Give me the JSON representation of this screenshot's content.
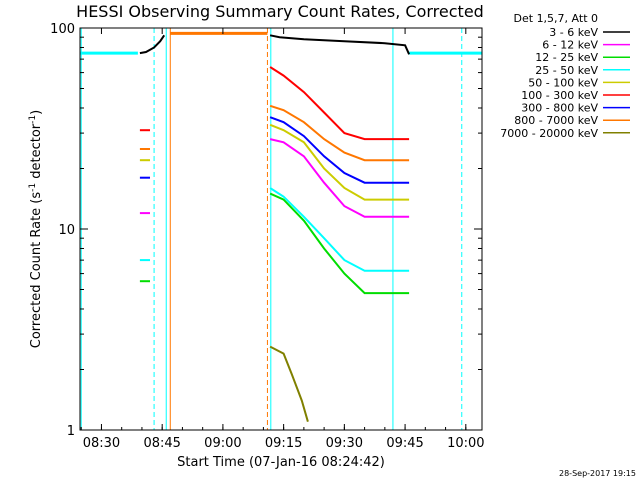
{
  "page": {
    "background": "#ffffff"
  },
  "chart_data": {
    "type": "line",
    "title": "HESSI Observing Summary Count Rates, Corrected",
    "xlabel": "Start Time (07-Jan-16 08:24:42)",
    "ylabel": {
      "prefix": "Corrected Count Rate (s",
      "sup1": "-1",
      "middle": " detector",
      "sup2": "-1",
      "suffix": ")"
    },
    "xaxis_minutes_offset_note_units": "minutes after 08:24:42",
    "xlim": [
      "08:24:42",
      "10:04:00"
    ],
    "ylim": [
      1,
      100
    ],
    "yscale": "log",
    "xtick_labels": [
      "08:30",
      "08:45",
      "09:00",
      "09:15",
      "09:30",
      "09:45",
      "10:00"
    ],
    "xtick_times": [
      "08:30",
      "08:45",
      "09:00",
      "09:15",
      "09:30",
      "09:45",
      "10:00"
    ],
    "ytick_labels": [
      "1",
      "10",
      "100"
    ],
    "ytick_values": [
      1,
      10,
      100
    ],
    "legend": {
      "header": "Det 1,5,7, Att 0",
      "placement": "right",
      "entries": [
        {
          "label": "3 - 6 keV",
          "color": "#000000"
        },
        {
          "label": "6 - 12 keV",
          "color": "#ff00ff"
        },
        {
          "label": "12 - 25 keV",
          "color": "#00dd00"
        },
        {
          "label": "25 - 50 keV",
          "color": "#00ffff"
        },
        {
          "label": "50 - 100 keV",
          "color": "#cccc00"
        },
        {
          "label": "100 - 300 keV",
          "color": "#ff0000"
        },
        {
          "label": "300 - 800 keV",
          "color": "#0000ff"
        },
        {
          "label": "800 - 7000 keV",
          "color": "#ff7700"
        },
        {
          "label": "7000 - 20000 keV",
          "color": "#808000"
        }
      ]
    },
    "series": [
      {
        "name": "3 - 6 keV",
        "color": "#000000",
        "segments": [
          {
            "x": [
              "08:39:30",
              "08:41:00",
              "08:43:00",
              "08:44:30",
              "08:45:30"
            ],
            "y": [
              75,
              76,
              80,
              86,
              92
            ]
          },
          {
            "x": [
              "09:11:40",
              "09:14:00",
              "09:20:00",
              "09:30:00",
              "09:40:00",
              "09:45:00",
              "09:46:00"
            ],
            "y": [
              92,
              90,
              88,
              86,
              84,
              82,
              74
            ]
          }
        ]
      },
      {
        "name": "6 - 12 keV",
        "color": "#ff00ff",
        "segments": [
          {
            "x": [
              "08:39:30",
              "08:42:00"
            ],
            "y": [
              12,
              12
            ]
          },
          {
            "x": [
              "09:11:40",
              "09:15:00",
              "09:20:00",
              "09:25:00",
              "09:30:00",
              "09:35:00",
              "09:45:00",
              "09:46:00"
            ],
            "y": [
              28,
              27,
              23,
              17,
              13,
              11.5,
              11.5,
              11.5
            ]
          }
        ]
      },
      {
        "name": "12 - 25 keV",
        "color": "#00dd00",
        "segments": [
          {
            "x": [
              "08:39:30",
              "08:42:00"
            ],
            "y": [
              5.5,
              5.5
            ]
          },
          {
            "x": [
              "09:11:40",
              "09:15:00",
              "09:20:00",
              "09:25:00",
              "09:30:00",
              "09:35:00",
              "09:45:00",
              "09:46:00"
            ],
            "y": [
              15,
              14,
              11,
              8,
              6,
              4.8,
              4.8,
              4.8
            ]
          }
        ]
      },
      {
        "name": "25 - 50 keV",
        "color": "#00ffff",
        "segments": [
          {
            "x": [
              "08:39:30",
              "08:42:00"
            ],
            "y": [
              7,
              7
            ]
          },
          {
            "x": [
              "09:11:40",
              "09:15:00",
              "09:20:00",
              "09:25:00",
              "09:30:00",
              "09:35:00",
              "09:45:00",
              "09:46:00"
            ],
            "y": [
              16,
              14.5,
              11.5,
              9,
              7,
              6.2,
              6.2,
              6.2
            ]
          }
        ]
      },
      {
        "name": "50 - 100 keV",
        "color": "#cccc00",
        "segments": [
          {
            "x": [
              "08:39:30",
              "08:42:00"
            ],
            "y": [
              22,
              22
            ]
          },
          {
            "x": [
              "09:11:40",
              "09:15:00",
              "09:20:00",
              "09:25:00",
              "09:30:00",
              "09:35:00",
              "09:45:00",
              "09:46:00"
            ],
            "y": [
              33,
              31,
              27,
              20,
              16,
              14,
              14,
              14
            ]
          }
        ]
      },
      {
        "name": "100 - 300 keV",
        "color": "#ff0000",
        "segments": [
          {
            "x": [
              "08:39:30",
              "08:42:00"
            ],
            "y": [
              31,
              31
            ]
          },
          {
            "x": [
              "09:11:40",
              "09:15:00",
              "09:20:00",
              "09:25:00",
              "09:30:00",
              "09:35:00",
              "09:45:00",
              "09:46:00"
            ],
            "y": [
              64,
              58,
              48,
              38,
              30,
              28,
              28,
              28
            ]
          }
        ]
      },
      {
        "name": "300 - 800 keV",
        "color": "#0000ff",
        "segments": [
          {
            "x": [
              "08:39:30",
              "08:42:00"
            ],
            "y": [
              18,
              18
            ]
          },
          {
            "x": [
              "09:11:40",
              "09:15:00",
              "09:20:00",
              "09:25:00",
              "09:30:00",
              "09:35:00",
              "09:45:00",
              "09:46:00"
            ],
            "y": [
              36,
              34,
              29,
              23,
              19,
              17,
              17,
              17
            ]
          }
        ]
      },
      {
        "name": "800 - 7000 keV",
        "color": "#ff7700",
        "segments": [
          {
            "x": [
              "08:39:30",
              "08:42:00"
            ],
            "y": [
              25,
              25
            ]
          },
          {
            "x": [
              "09:11:40",
              "09:15:00",
              "09:20:00",
              "09:25:00",
              "09:30:00",
              "09:35:00",
              "09:45:00",
              "09:46:00"
            ],
            "y": [
              41,
              39,
              34,
              28,
              24,
              22,
              22,
              22
            ]
          }
        ]
      },
      {
        "name": "7000 - 20000 keV",
        "color": "#808000",
        "segments": [
          {
            "x": [
              "09:11:40",
              "09:15:00",
              "09:17:00",
              "09:19:30",
              "09:21:00"
            ],
            "y": [
              2.6,
              2.4,
              1.9,
              1.4,
              1.1
            ]
          }
        ]
      }
    ],
    "reference_lines": [
      {
        "kind": "horizontal",
        "color": "#00ffff",
        "y": 75,
        "x": [
          "08:24:42",
          "08:39:00"
        ]
      },
      {
        "kind": "horizontal",
        "color": "#00ffff",
        "y": 75,
        "x": [
          "09:46:00",
          "10:04:00"
        ]
      },
      {
        "kind": "horizontal",
        "color": "#ff7700",
        "y": 94,
        "x": [
          "08:47:00",
          "09:11:00"
        ]
      },
      {
        "kind": "vertical",
        "color": "#00ffff",
        "style": "solid",
        "x": "08:25:00"
      },
      {
        "kind": "vertical",
        "color": "#00ffff",
        "style": "dashed",
        "x": "08:43:00"
      },
      {
        "kind": "vertical",
        "color": "#00ffff",
        "style": "solid",
        "x": "08:46:00"
      },
      {
        "kind": "vertical",
        "color": "#ff7700",
        "style": "solid",
        "x": "08:47:00"
      },
      {
        "kind": "vertical",
        "color": "#ff7700",
        "style": "dashed",
        "x": "09:11:00"
      },
      {
        "kind": "vertical",
        "color": "#00ffff",
        "style": "solid",
        "x": "09:11:50"
      },
      {
        "kind": "vertical",
        "color": "#00ffff",
        "style": "solid",
        "x": "09:42:00"
      },
      {
        "kind": "vertical",
        "color": "#00ffff",
        "style": "dashed",
        "x": "09:59:00"
      }
    ]
  },
  "footer": {
    "timestamp": "28-Sep-2017 19:15"
  }
}
